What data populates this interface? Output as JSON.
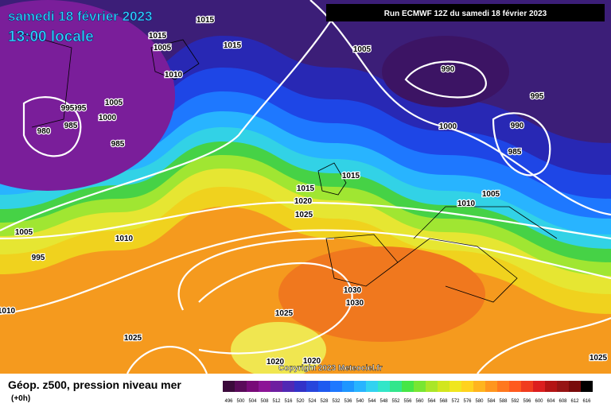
{
  "header": {
    "date": "samedi 18 février 2023",
    "time": "13:00 locale",
    "run": "Run ECMWF 12Z du samedi 18 février 2023"
  },
  "isobar_labels": [
    "1015",
    "1005",
    "1015",
    "1015",
    "1010",
    "1005",
    "1000",
    "995",
    "995",
    "985",
    "980",
    "985",
    "1005",
    "990",
    "995",
    "1000",
    "990",
    "985",
    "1015",
    "1015",
    "1020",
    "1025",
    "1005",
    "1010",
    "1010",
    "1005",
    "995",
    "1010",
    "1030",
    "1030",
    "1025",
    "1025",
    "1020",
    "1020",
    "1025"
  ],
  "copyright": "Copyright 2023 Meteociel.fr",
  "legend": {
    "title": "Géop. z500, pression niveau mer",
    "lead": "(+0h)",
    "labels": [
      496,
      500,
      504,
      508,
      512,
      516,
      520,
      524,
      528,
      532,
      536,
      540,
      544,
      548,
      552,
      556,
      560,
      564,
      568,
      572,
      576,
      580,
      584,
      588,
      592,
      596,
      600,
      604,
      608,
      612,
      616
    ],
    "colors": [
      "#3c0a3c",
      "#5a0a5a",
      "#780a78",
      "#8c1496",
      "#6e1ea0",
      "#5028b4",
      "#3232c8",
      "#2846dc",
      "#1e5af0",
      "#1e78ff",
      "#1e96ff",
      "#28b4ff",
      "#32d2f0",
      "#32e6c8",
      "#32e68c",
      "#46e646",
      "#78e632",
      "#aae628",
      "#d2e61e",
      "#f0e61e",
      "#ffd21e",
      "#ffb41e",
      "#ff961e",
      "#ff781e",
      "#ff5a1e",
      "#f03c1e",
      "#dc1e1e",
      "#b41414",
      "#961414",
      "#780a0a",
      "#000000"
    ]
  }
}
